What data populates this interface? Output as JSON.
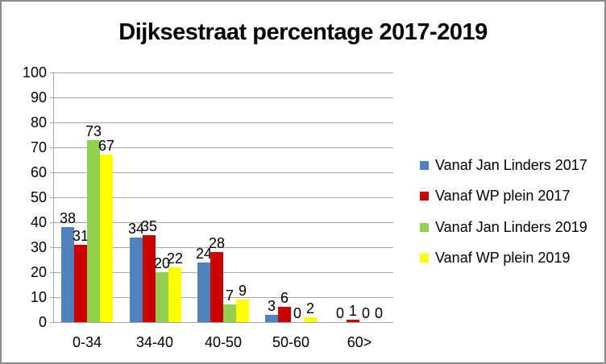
{
  "chart_data": {
    "type": "bar",
    "title": "Dijksestraat percentage 2017-2019",
    "categories": [
      "0-34",
      "34-40",
      "40-50",
      "50-60",
      "60>"
    ],
    "series": [
      {
        "name": "Vanaf Jan Linders 2017",
        "color": "#4F81BD",
        "values": [
          38,
          34,
          24,
          3,
          0
        ]
      },
      {
        "name": "Vanaf WP plein 2017",
        "color": "#C80000",
        "values": [
          31,
          35,
          28,
          6,
          1
        ]
      },
      {
        "name": "Vanaf Jan Linders 2019",
        "color": "#92D050",
        "values": [
          73,
          20,
          7,
          0,
          0
        ]
      },
      {
        "name": "Vanaf WP plein 2019",
        "color": "#FFFF00",
        "values": [
          67,
          22,
          9,
          2,
          0
        ]
      }
    ],
    "ylim": [
      0,
      100
    ],
    "ytick_step": 10,
    "grid": true,
    "data_labels": true,
    "legend_position": "right",
    "axis_color": "#A6A6A6",
    "text_color": "#000000",
    "border_color": "#8C8C8C"
  }
}
